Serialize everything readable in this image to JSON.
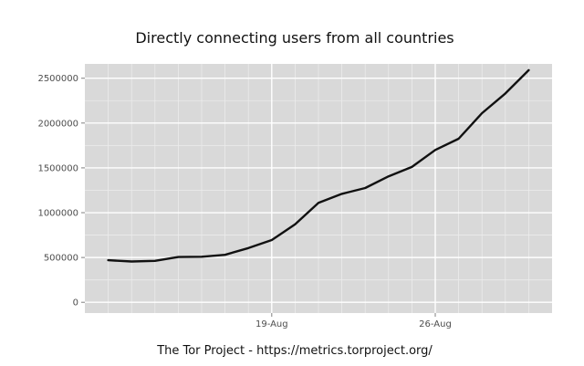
{
  "chart_data": {
    "type": "line",
    "title": "Directly connecting users from all countries",
    "xlabel": "",
    "ylabel": "",
    "caption": "The Tor Project - https://metrics.torproject.org/",
    "x_ticks": [
      {
        "label": "19-Aug",
        "date": "2013-08-19"
      },
      {
        "label": "26-Aug",
        "date": "2013-08-26"
      }
    ],
    "y_ticks": [
      0,
      500000,
      1000000,
      1500000,
      2000000,
      2500000
    ],
    "y_tick_labels": [
      "0",
      "500000",
      "1000000",
      "1500000",
      "2000000",
      "2500000"
    ],
    "xlim": [
      "2013-08-11",
      "2013-08-31"
    ],
    "ylim": [
      -120000,
      2660000
    ],
    "grid": true,
    "colors": {
      "panel": "#d9d9d9",
      "grid_major": "#ffffff",
      "grid_minor": "#ececec",
      "line": "#111111"
    },
    "series": [
      {
        "points": [
          {
            "date": "2013-08-12",
            "value": 470000
          },
          {
            "date": "2013-08-13",
            "value": 455000
          },
          {
            "date": "2013-08-14",
            "value": 462000
          },
          {
            "date": "2013-08-15",
            "value": 505000
          },
          {
            "date": "2013-08-16",
            "value": 508000
          },
          {
            "date": "2013-08-17",
            "value": 530000
          },
          {
            "date": "2013-08-18",
            "value": 605000
          },
          {
            "date": "2013-08-19",
            "value": 695000
          },
          {
            "date": "2013-08-20",
            "value": 870000
          },
          {
            "date": "2013-08-21",
            "value": 1110000
          },
          {
            "date": "2013-08-22",
            "value": 1210000
          },
          {
            "date": "2013-08-23",
            "value": 1275000
          },
          {
            "date": "2013-08-24",
            "value": 1405000
          },
          {
            "date": "2013-08-25",
            "value": 1510000
          },
          {
            "date": "2013-08-26",
            "value": 1700000
          },
          {
            "date": "2013-08-27",
            "value": 1825000
          },
          {
            "date": "2013-08-28",
            "value": 2110000
          },
          {
            "date": "2013-08-29",
            "value": 2330000
          },
          {
            "date": "2013-08-30",
            "value": 2590000
          }
        ]
      }
    ]
  }
}
